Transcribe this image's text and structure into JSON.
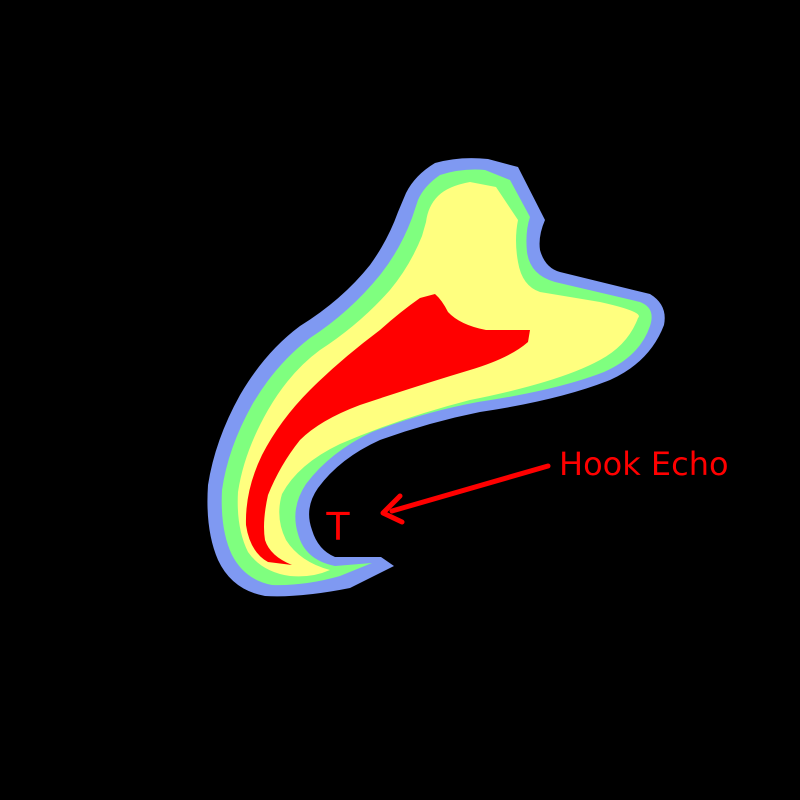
{
  "labels": {
    "hook_echo": "Hook Echo",
    "tornado_marker": "T"
  },
  "colors": {
    "background": "#000000",
    "outer_band": "#7f99f2",
    "second_band": "#7fff7f",
    "third_band": "#ffff7f",
    "core": "#ff0000",
    "annotation": "#ff0000"
  }
}
